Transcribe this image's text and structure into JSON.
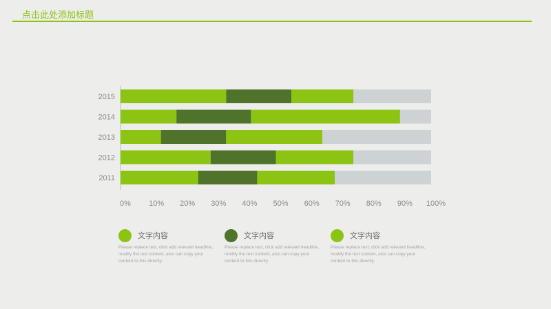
{
  "slide": {
    "title": "点击此处添加标题"
  },
  "colors": {
    "accent": "#8cc414",
    "series": [
      "#8cc414",
      "#4f732a",
      "#8cc414",
      "#cdd2d5"
    ]
  },
  "chart_data": {
    "type": "bar",
    "orientation": "horizontal",
    "stacked": true,
    "categories": [
      "2015",
      "2014",
      "2013",
      "2012",
      "2011"
    ],
    "series": [
      {
        "values": [
          34,
          18,
          13,
          29,
          25
        ]
      },
      {
        "values": [
          21,
          24,
          21,
          21,
          19
        ]
      },
      {
        "values": [
          20,
          48,
          31,
          25,
          25
        ]
      },
      {
        "values": [
          25,
          10,
          35,
          25,
          31
        ]
      }
    ],
    "xlim": [
      0,
      100
    ],
    "xticks": [
      "0%",
      "10%",
      "20%",
      "30%",
      "40%",
      "50%",
      "60%",
      "70%",
      "80%",
      "90%",
      "100%"
    ],
    "title": "",
    "xlabel": "",
    "ylabel": "",
    "grid": false
  },
  "legend": [
    {
      "heading": "文字内容",
      "body": "Please replace text, click add relevant headline, modify the text content, also can copy your content to this directly.",
      "color": "#8cc414"
    },
    {
      "heading": "文字内容",
      "body": "Please replace text, click add relevant headline, modify the text content, also can copy your content to this directly.",
      "color": "#4f732a"
    },
    {
      "heading": "文字内容",
      "body": "Please replace text, click add relevant headline, modify the text content, also can copy your content to this directly.",
      "color": "#8cc414"
    }
  ]
}
